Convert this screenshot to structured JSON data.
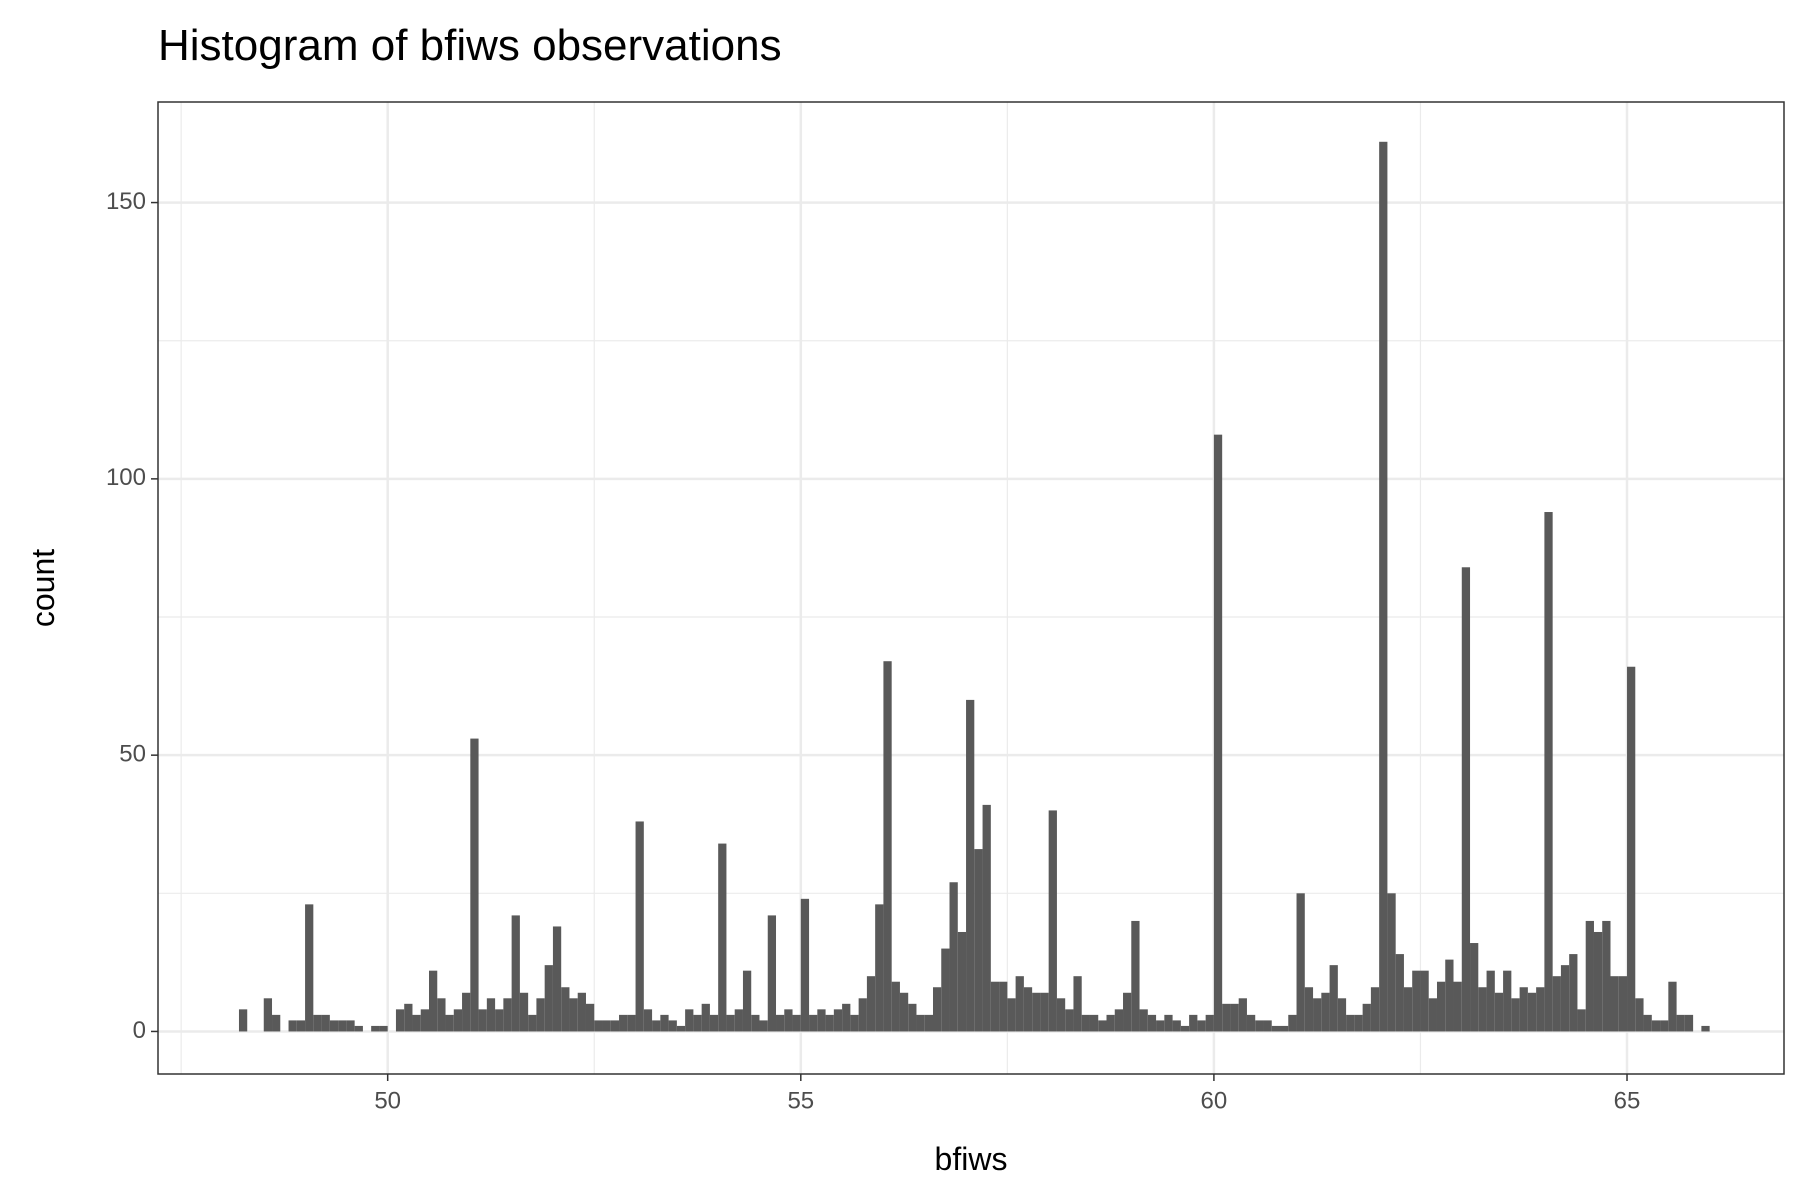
{
  "chart_data": {
    "type": "histogram",
    "title": "Histogram of bfiws observations",
    "x_label": "bfiws",
    "y_label": "count",
    "color": "#595959",
    "xlim": [
      47.22,
      66.9
    ],
    "ylim": [
      -7.7,
      168.2
    ],
    "xticks": [
      50,
      55,
      60,
      65
    ],
    "yticks": [
      0,
      50,
      100,
      150
    ],
    "xminor": [
      47.5,
      52.5,
      57.5,
      62.5
    ],
    "yminor": [
      25,
      75,
      125
    ],
    "grid": true,
    "bins": [
      48.2,
      48.3,
      48.4,
      48.5,
      48.6,
      48.7,
      48.8,
      48.9,
      49.0,
      49.1,
      49.2,
      49.3,
      49.4,
      49.5,
      49.6,
      49.7,
      49.8,
      49.9,
      50.0,
      50.1,
      50.2,
      50.3,
      50.4,
      50.5,
      50.6,
      50.7,
      50.8,
      50.9,
      51.0,
      51.1,
      51.2,
      51.3,
      51.4,
      51.5,
      51.6,
      51.7,
      51.8,
      51.9,
      52.0,
      52.1,
      52.2,
      52.3,
      52.4,
      52.5,
      52.6,
      52.7,
      52.8,
      52.9,
      53.0,
      53.1,
      53.2,
      53.3,
      53.4,
      53.5,
      53.6,
      53.7,
      53.8,
      53.9,
      54.0,
      54.1,
      54.2,
      54.3,
      54.4,
      54.5,
      54.6,
      54.7,
      54.8,
      54.9,
      55.0,
      55.1,
      55.2,
      55.3,
      55.4,
      55.5,
      55.6,
      55.7,
      55.8,
      55.9,
      56.0,
      56.1,
      56.2,
      56.3,
      56.4,
      56.5,
      56.6,
      56.7,
      56.8,
      56.9,
      57.0,
      57.1,
      57.2,
      57.3,
      57.4,
      57.5,
      57.6,
      57.7,
      57.8,
      57.9,
      58.0,
      58.1,
      58.2,
      58.3,
      58.4,
      58.5,
      58.6,
      58.7,
      58.8,
      58.9,
      59.0,
      59.1,
      59.2,
      59.3,
      59.4,
      59.5,
      59.6,
      59.7,
      59.8,
      59.9,
      60.0,
      60.1,
      60.2,
      60.3,
      60.4,
      60.5,
      60.6,
      60.7,
      60.8,
      60.9,
      61.0,
      61.1,
      61.2,
      61.3,
      61.4,
      61.5,
      61.6,
      61.7,
      61.8,
      61.9,
      62.0,
      62.1,
      62.2,
      62.3,
      62.4,
      62.5,
      62.6,
      62.7,
      62.8,
      62.9,
      63.0,
      63.1,
      63.2,
      63.3,
      63.4,
      63.5,
      63.6,
      63.7,
      63.8,
      63.9,
      64.0,
      64.1,
      64.2,
      64.3,
      64.4,
      64.5,
      64.6,
      64.7,
      64.8,
      64.9,
      65.0,
      65.1,
      65.2,
      65.3,
      65.4,
      65.5,
      65.6,
      65.7,
      65.8,
      65.9,
      66.0
    ],
    "values": [
      4,
      0,
      0,
      6,
      3,
      0,
      2,
      2,
      23,
      3,
      3,
      2,
      2,
      2,
      1,
      0,
      1,
      1,
      0,
      4,
      5,
      3,
      4,
      11,
      6,
      3,
      4,
      7,
      53,
      4,
      6,
      4,
      6,
      21,
      7,
      3,
      6,
      12,
      19,
      8,
      6,
      7,
      5,
      2,
      2,
      2,
      3,
      3,
      38,
      4,
      2,
      3,
      2,
      1,
      4,
      3,
      5,
      3,
      34,
      3,
      4,
      11,
      3,
      2,
      21,
      3,
      4,
      3,
      24,
      3,
      4,
      3,
      4,
      5,
      3,
      6,
      10,
      23,
      67,
      9,
      7,
      5,
      3,
      3,
      8,
      15,
      27,
      18,
      60,
      33,
      41,
      9,
      9,
      6,
      10,
      8,
      7,
      7,
      40,
      6,
      4,
      10,
      3,
      3,
      2,
      3,
      4,
      7,
      20,
      4,
      3,
      2,
      3,
      2,
      1,
      3,
      2,
      3,
      108,
      5,
      5,
      6,
      3,
      2,
      2,
      1,
      1,
      3,
      25,
      8,
      6,
      7,
      12,
      6,
      3,
      3,
      5,
      8,
      161,
      25,
      14,
      8,
      11,
      11,
      6,
      9,
      13,
      9,
      84,
      16,
      8,
      11,
      7,
      11,
      6,
      8,
      7,
      8,
      94,
      10,
      12,
      14,
      4,
      20,
      18,
      20,
      10,
      10,
      66,
      6,
      3,
      2,
      2,
      9,
      3,
      3,
      0,
      1
    ]
  }
}
